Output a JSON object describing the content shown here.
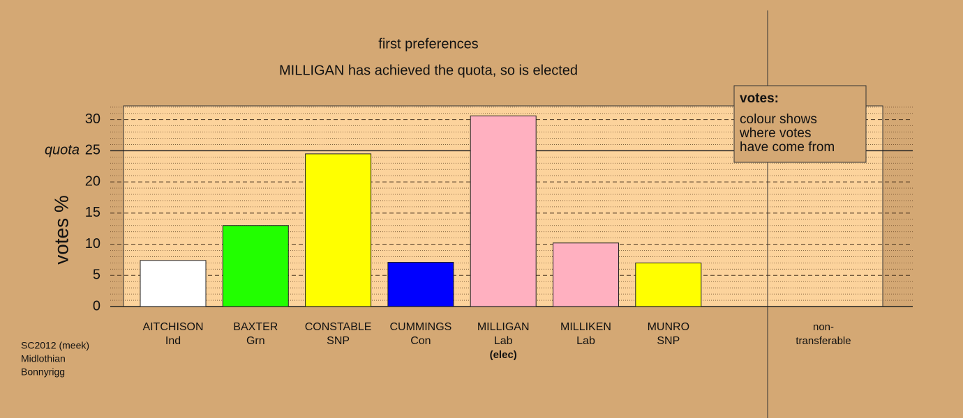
{
  "chart_data": {
    "type": "bar",
    "title": "first preferences",
    "subtitle": "MILLIGAN has achieved the quota, so is elected",
    "y_label": "votes %",
    "categories": [
      "AITCHISON",
      "BAXTER",
      "CONSTABLE",
      "CUMMINGS",
      "MILLIGAN",
      "MILLIKEN",
      "MUNRO"
    ],
    "parties": [
      "Ind",
      "Grn",
      "SNP",
      "Con",
      "Lab",
      "Lab",
      "SNP"
    ],
    "status": [
      null,
      null,
      null,
      null,
      "(elec)",
      null,
      null
    ],
    "values": [
      7.4,
      13.0,
      24.5,
      7.1,
      30.6,
      10.2,
      7.0
    ],
    "colors": [
      "#ffffff",
      "#22ff00",
      "#ffff00",
      "#0000ff",
      "#ffb0c0",
      "#ffb0c0",
      "#ffff00"
    ],
    "nontransferable_label": [
      "non-",
      "transferable"
    ],
    "ylim": [
      0,
      32.2
    ],
    "yticks": [
      0,
      5,
      10,
      15,
      20,
      25,
      30
    ],
    "minor_yticks": [
      1,
      2,
      3,
      4,
      6,
      7,
      8,
      9,
      11,
      12,
      13,
      14,
      16,
      17,
      18,
      19,
      21,
      22,
      23,
      24,
      26,
      27,
      28,
      29,
      31,
      32
    ],
    "quota": {
      "value": 25,
      "label": "quota"
    },
    "grid": true,
    "legend": {
      "title": "votes:",
      "lines": [
        "colour shows",
        "where votes",
        "have come from"
      ]
    },
    "footer": [
      "SC2012 (meek)",
      "Midlothian",
      "Bonnyrigg"
    ]
  }
}
